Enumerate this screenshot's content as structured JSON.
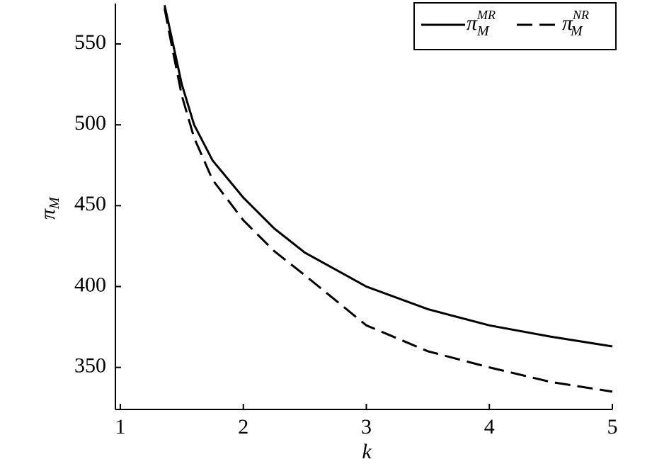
{
  "chart_data": {
    "type": "line",
    "x": [
      1.36,
      1.4,
      1.5,
      1.6,
      1.75,
      2,
      2.25,
      2.5,
      3,
      3.5,
      4,
      4.5,
      5
    ],
    "series": [
      {
        "name": "π",
        "sub": "M",
        "sup": "MR",
        "color": "#000000",
        "dash": "solid",
        "values": [
          574,
          560,
          525,
          500,
          478,
          455,
          436,
          421,
          400,
          386,
          376,
          369,
          363
        ]
      },
      {
        "name": "π",
        "sub": "M",
        "sup": "NR",
        "color": "#000000",
        "dash": "dashed",
        "values": [
          572,
          556,
          518,
          492,
          466,
          441,
          422,
          407,
          376,
          360,
          350,
          341,
          335
        ]
      }
    ],
    "xlabel": "k",
    "ylabel": "π",
    "ylabel_sub": "M",
    "xlim": [
      0.96,
      5
    ],
    "ylim": [
      324,
      575
    ],
    "xticks": [
      1,
      2,
      3,
      4,
      5
    ],
    "yticks": [
      350,
      400,
      450,
      500,
      550
    ],
    "legend": "upper right"
  }
}
